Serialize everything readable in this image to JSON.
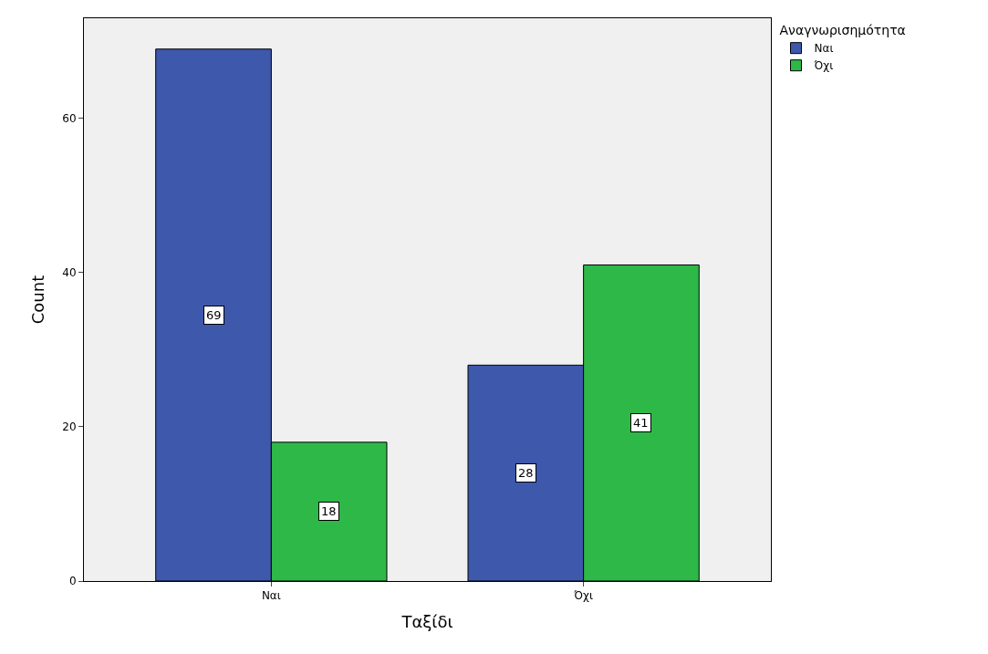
{
  "chart_data": {
    "type": "bar",
    "xlabel": "Ταξίδι",
    "ylabel": "Count",
    "legend_title": "Αναγνωρισημότητα",
    "categories": [
      "Ναι",
      "Όχι"
    ],
    "series": [
      {
        "name": "Ναι",
        "color": "#3e58ac",
        "values": [
          69,
          28
        ]
      },
      {
        "name": "Όχι",
        "color": "#2eb848",
        "values": [
          18,
          41
        ]
      }
    ],
    "ylim": [
      0,
      73
    ],
    "yticks": [
      0,
      20,
      40,
      60
    ],
    "grid": false,
    "legend": "top right",
    "data_labels": true
  }
}
